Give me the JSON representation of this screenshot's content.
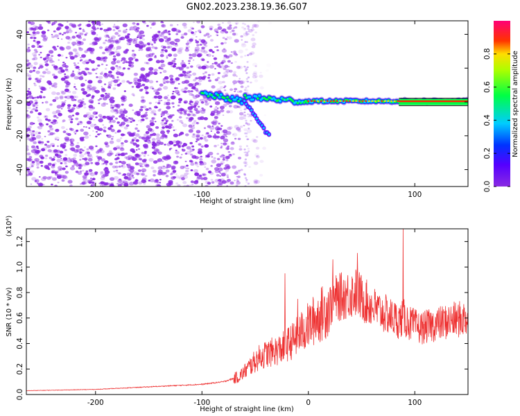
{
  "title": "GN02.2023.238.19.36.G07",
  "colors": {
    "snr_line": "#ee3333",
    "spectrogram_noise": "#8a2be2",
    "frame": "#000000"
  },
  "chart_data": [
    {
      "type": "heatmap",
      "name": "spectrogram",
      "xlabel": "Height of straight line (km)",
      "ylabel": "Frequency (Hz)",
      "xlim": [
        -265,
        150
      ],
      "ylim": [
        -50,
        48
      ],
      "x_ticks": [
        -200,
        -100,
        0,
        100
      ],
      "y_ticks": [
        -40,
        -20,
        0,
        20,
        40
      ],
      "colorbar": {
        "label": "Normalized spectral amplitude",
        "range": [
          0.0,
          1.0
        ],
        "ticks": [
          0.0,
          0.2,
          0.4,
          0.6,
          0.8
        ],
        "tick_labels": [
          "0.0",
          "0.2",
          "0.4",
          "0.6",
          "0.8"
        ],
        "colormap": "rainbow (purple-blue-cyan-green-yellow-red-magenta)"
      },
      "features": {
        "noise_region_x": [
          -265,
          -60
        ],
        "signal_trace_x": [
          -100,
          150
        ],
        "signal_frequency_hz": 0,
        "diverging_branch": {
          "x": [
            -60,
            -37
          ],
          "freq": [
            0,
            -20
          ]
        }
      }
    },
    {
      "type": "line",
      "name": "snr",
      "xlabel": "Height of straight line (km)",
      "ylabel": "SNR (10 * v/v)",
      "y_multiplier": "(x10⁴)",
      "xlim": [
        -265,
        150
      ],
      "ylim": [
        0.0,
        1.3
      ],
      "x_ticks": [
        -200,
        -100,
        0,
        100
      ],
      "y_ticks": [
        0.0,
        0.2,
        0.4,
        0.6,
        0.8,
        1.0,
        1.2
      ],
      "y_tick_labels": [
        "0.0",
        "0.2",
        "0.4",
        "0.6",
        "0.8",
        "1.0",
        "1.2"
      ],
      "series": [
        {
          "envelope_x": [
            -265,
            -200,
            -150,
            -100,
            -80,
            -65,
            -55,
            -45,
            -35,
            -25,
            -15,
            -5,
            5,
            15,
            25,
            35,
            45,
            55,
            65,
            75,
            85,
            90,
            95,
            105,
            120,
            135,
            150
          ],
          "envelope_y": [
            0.03,
            0.04,
            0.06,
            0.08,
            0.1,
            0.14,
            0.22,
            0.3,
            0.33,
            0.36,
            0.42,
            0.5,
            0.58,
            0.65,
            0.75,
            0.78,
            0.8,
            0.72,
            0.66,
            0.62,
            0.58,
            0.6,
            0.56,
            0.52,
            0.55,
            0.58,
            0.6
          ],
          "spikes": [
            {
              "x": -22,
              "y": 0.95
            },
            {
              "x": -10,
              "y": 0.75
            },
            {
              "x": 23,
              "y": 1.06
            },
            {
              "x": 46,
              "y": 1.11
            },
            {
              "x": 89,
              "y": 1.3
            }
          ]
        }
      ]
    }
  ]
}
